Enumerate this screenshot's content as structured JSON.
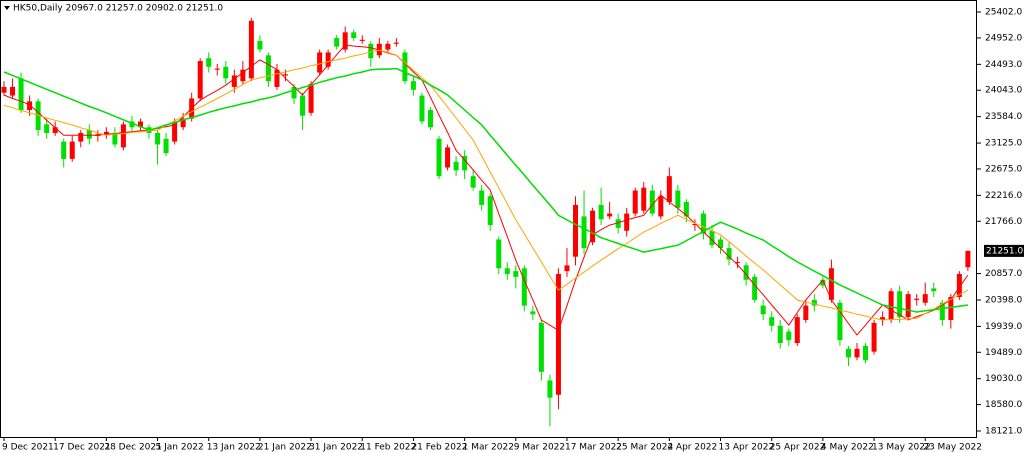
{
  "chart_data": {
    "type": "candlestick",
    "header": "HK50,Daily  20967.0 21257.0 20902.0 21251.0",
    "up_color": "#ff0000",
    "down_color": "#00e000",
    "ylim": [
      18017,
      25611
    ],
    "yticks": [
      {
        "value": 25402,
        "label": "25402.0"
      },
      {
        "value": 24952,
        "label": "24952.0"
      },
      {
        "value": 24493,
        "label": "24493.0"
      },
      {
        "value": 24043,
        "label": "24043.0"
      },
      {
        "value": 23584,
        "label": "23584.0"
      },
      {
        "value": 23125,
        "label": "23125.0"
      },
      {
        "value": 22675,
        "label": "22675.0"
      },
      {
        "value": 22216,
        "label": "22216.0"
      },
      {
        "value": 21766,
        "label": "21766.0"
      },
      {
        "value": 20857,
        "label": "20857.0"
      },
      {
        "value": 20398,
        "label": "20398.0"
      },
      {
        "value": 19939,
        "label": "19939.0"
      },
      {
        "value": 19489,
        "label": "19489.0"
      },
      {
        "value": 19030,
        "label": "19030.0"
      },
      {
        "value": 18580,
        "label": "18580.0"
      },
      {
        "value": 18121,
        "label": "18121.0"
      }
    ],
    "price_label": {
      "value": 21251,
      "label": "21251.0"
    },
    "categories": [
      "9 Dec 2021",
      null,
      null,
      null,
      null,
      null,
      "17 Dec 2021",
      null,
      null,
      null,
      null,
      null,
      "28 Dec 2021",
      null,
      null,
      null,
      null,
      null,
      "5 Jan 2022",
      null,
      null,
      null,
      null,
      null,
      "13 Jan 2022",
      null,
      null,
      null,
      null,
      null,
      "21 Jan 2022",
      null,
      null,
      null,
      null,
      null,
      "31 Jan 2022",
      null,
      null,
      null,
      null,
      null,
      "11 Feb 2022",
      null,
      null,
      null,
      null,
      null,
      "21 Feb 2022",
      null,
      null,
      null,
      null,
      null,
      "1 Mar 2022",
      null,
      null,
      null,
      null,
      null,
      "9 Mar 2022",
      null,
      null,
      null,
      null,
      null,
      "17 Mar 2022",
      null,
      null,
      null,
      null,
      null,
      "25 Mar 2022",
      null,
      null,
      null,
      null,
      null,
      "4 Apr 2022",
      null,
      null,
      null,
      null,
      null,
      "13 Apr 2022",
      null,
      null,
      null,
      null,
      null,
      "25 Apr 2022",
      null,
      null,
      null,
      null,
      null,
      "4 May 2022",
      null,
      null,
      null,
      null,
      null,
      "13 May 2022",
      null,
      null,
      null,
      null,
      null,
      "23 May 2022",
      null,
      null,
      null,
      null,
      null
    ],
    "open": [
      24000,
      23950,
      24250,
      23700,
      23850,
      23450,
      23300,
      23150,
      22850,
      23150,
      23350,
      23250,
      23280,
      23300,
      23050,
      23500,
      23400,
      23400,
      23300,
      23200,
      23150,
      23400,
      23550,
      23900,
      24600,
      24400,
      24450,
      24100,
      24200,
      24250,
      24900,
      24650,
      24100,
      24300,
      24100,
      23950,
      23650,
      24350,
      24450,
      24950,
      24750,
      25050,
      24900,
      24850,
      24650,
      24750,
      24850,
      24700,
      24200,
      23950,
      23700,
      23200,
      22700,
      22800,
      22900,
      22550,
      22300,
      22200,
      21450,
      20950,
      20900,
      20950,
      20200,
      20000,
      19000,
      18750,
      20900,
      21150,
      21850,
      21400,
      22050,
      21850,
      21800,
      21600,
      21900,
      21950,
      22300,
      21850,
      22100,
      22300,
      22100,
      21700,
      21900,
      21600,
      21450,
      21300,
      21050,
      21000,
      20800,
      20300,
      20100,
      19950,
      19850,
      19650,
      20050,
      20400,
      20750,
      20400,
      20350,
      19550,
      19400,
      19600,
      19500,
      20050,
      20050,
      20550,
      20100,
      20400,
      20350,
      20600,
      20350,
      20050,
      20450,
      20967
    ],
    "high": [
      24200,
      24250,
      24350,
      23950,
      23900,
      23550,
      23500,
      23200,
      23250,
      23350,
      23450,
      23350,
      23400,
      23400,
      23500,
      23600,
      23550,
      23450,
      23350,
      23300,
      23550,
      23650,
      24000,
      24600,
      24700,
      24500,
      24550,
      24400,
      24550,
      25300,
      25000,
      24700,
      24500,
      24400,
      24150,
      24000,
      24200,
      24750,
      24750,
      25000,
      25150,
      25100,
      25000,
      24900,
      24950,
      24900,
      24950,
      24750,
      24300,
      24000,
      23750,
      23250,
      23100,
      22900,
      23000,
      22650,
      22400,
      22250,
      21500,
      21050,
      21000,
      21000,
      20300,
      20050,
      19100,
      20950,
      21300,
      22200,
      22300,
      22000,
      22350,
      22100,
      21900,
      22000,
      22350,
      22450,
      22400,
      22300,
      22700,
      22400,
      22150,
      21800,
      21950,
      21700,
      21500,
      21400,
      21150,
      21050,
      20850,
      20400,
      20200,
      20050,
      19900,
      20150,
      20400,
      20500,
      20800,
      21100,
      20400,
      19600,
      19650,
      19650,
      20050,
      20200,
      20600,
      20650,
      20550,
      20500,
      20700,
      20700,
      20400,
      20500,
      20900,
      21257
    ],
    "low": [
      23950,
      23900,
      23650,
      23600,
      23250,
      23200,
      23250,
      22700,
      22800,
      23050,
      23100,
      23150,
      23200,
      23050,
      23000,
      23300,
      23350,
      23200,
      22750,
      22900,
      23100,
      23350,
      23500,
      23850,
      24350,
      24300,
      24150,
      24000,
      24150,
      24200,
      24700,
      24100,
      24050,
      24200,
      23800,
      23350,
      23600,
      24300,
      24400,
      24750,
      24700,
      24900,
      24850,
      24450,
      24600,
      24700,
      24800,
      24150,
      23950,
      23450,
      23350,
      22500,
      22650,
      22550,
      22500,
      22300,
      21950,
      21600,
      20850,
      20750,
      20600,
      20200,
      20050,
      19000,
      18200,
      18500,
      20800,
      21000,
      21200,
      21350,
      21700,
      21800,
      21550,
      21500,
      21850,
      21900,
      21850,
      21800,
      22050,
      21900,
      21750,
      21600,
      21450,
      21300,
      21200,
      21000,
      20950,
      20650,
      20350,
      20050,
      19850,
      19550,
      19600,
      19600,
      20000,
      20200,
      20600,
      20350,
      19600,
      19250,
      19350,
      19300,
      19450,
      19950,
      20000,
      20000,
      20050,
      20300,
      20300,
      20450,
      19950,
      19900,
      20400,
      20902
    ],
    "close": [
      24100,
      24100,
      23700,
      23850,
      23350,
      23300,
      23400,
      22850,
      23150,
      23300,
      23200,
      23280,
      23320,
      23100,
      23450,
      23400,
      23500,
      23300,
      23100,
      22950,
      23500,
      23550,
      23900,
      24550,
      24450,
      24420,
      24250,
      24300,
      24400,
      25250,
      24750,
      24200,
      24400,
      24320,
      23900,
      23600,
      24150,
      24700,
      24700,
      24800,
      25050,
      24950,
      24920,
      24600,
      24850,
      24850,
      24870,
      24200,
      24050,
      23500,
      23400,
      22550,
      23050,
      22650,
      22650,
      22350,
      22050,
      21700,
      20950,
      20850,
      20800,
      20300,
      20150,
      19150,
      18700,
      20850,
      21000,
      22050,
      21300,
      21950,
      21800,
      21900,
      21650,
      21900,
      22300,
      22350,
      21900,
      22200,
      22550,
      22000,
      21850,
      21720,
      21550,
      21350,
      21300,
      21100,
      21060,
      20750,
      20400,
      20150,
      19950,
      19650,
      19700,
      20100,
      20300,
      20300,
      20650,
      20950,
      19700,
      19400,
      19550,
      19350,
      20000,
      20100,
      20550,
      20100,
      20500,
      20420,
      20500,
      20550,
      20050,
      20450,
      20850,
      21251
    ],
    "series": [
      {
        "color": "#ff0000",
        "values": [
          23960,
          23900,
          23850,
          23790,
          23660,
          23520,
          23390,
          23260,
          23260,
          23260,
          23260,
          23260,
          23280,
          23290,
          23310,
          23320,
          23340,
          23350,
          23380,
          23410,
          23440,
          23580,
          23730,
          23870,
          23960,
          24040,
          24130,
          24240,
          24350,
          24460,
          24570,
          24490,
          24400,
          24250,
          24110,
          23960,
          24140,
          24310,
          24480,
          24660,
          24830,
          24810,
          24800,
          24780,
          24740,
          24690,
          24650,
          24510,
          24360,
          24220,
          23920,
          23610,
          23310,
          23000,
          22830,
          22660,
          22480,
          22310,
          21900,
          21500,
          21090,
          20740,
          20400,
          20050,
          19960,
          19870,
          20300,
          20740,
          21140,
          21530,
          21620,
          21700,
          21740,
          21790,
          21830,
          21870,
          22050,
          22220,
          22100,
          21990,
          21870,
          21730,
          21580,
          21440,
          21300,
          21150,
          21010,
          20840,
          20660,
          20490,
          20310,
          20140,
          19960,
          20180,
          20400,
          20570,
          20740,
          20400,
          20200,
          19990,
          19790,
          19960,
          20140,
          20310,
          20220,
          20140,
          20050,
          20110,
          20160,
          20220,
          20310,
          20400,
          20620,
          20830
        ]
      },
      {
        "color": "#ffa500",
        "values": [
          23780,
          23740,
          23690,
          23650,
          23610,
          23560,
          23520,
          23480,
          23440,
          23390,
          23350,
          23300,
          23260,
          23280,
          23290,
          23310,
          23320,
          23340,
          23350,
          23430,
          23510,
          23590,
          23670,
          23750,
          23820,
          23900,
          23980,
          24060,
          24140,
          24220,
          24260,
          24290,
          24330,
          24360,
          24400,
          24430,
          24470,
          24500,
          24540,
          24570,
          24600,
          24640,
          24670,
          24710,
          24740,
          24700,
          24650,
          24520,
          24390,
          24260,
          24130,
          23940,
          23750,
          23560,
          23370,
          23180,
          22900,
          22620,
          22350,
          22070,
          21790,
          21550,
          21300,
          21060,
          20810,
          20570,
          20670,
          20780,
          20880,
          20990,
          21090,
          21190,
          21290,
          21380,
          21480,
          21580,
          21650,
          21730,
          21800,
          21870,
          21800,
          21730,
          21670,
          21600,
          21530,
          21410,
          21290,
          21160,
          21040,
          20920,
          20790,
          20660,
          20530,
          20400,
          20360,
          20330,
          20290,
          20260,
          20220,
          20190,
          20150,
          20120,
          20080,
          20050,
          20060,
          20060,
          20070,
          20080,
          20160,
          20240,
          20330,
          20410,
          20490,
          20570
        ]
      },
      {
        "color": "#00dd00",
        "values": [
          24360,
          24300,
          24240,
          24180,
          24120,
          24060,
          24000,
          23940,
          23880,
          23820,
          23760,
          23710,
          23650,
          23590,
          23530,
          23470,
          23410,
          23350,
          23390,
          23440,
          23480,
          23530,
          23570,
          23610,
          23660,
          23700,
          23740,
          23770,
          23810,
          23840,
          23880,
          23910,
          23950,
          24000,
          24040,
          24090,
          24130,
          24180,
          24220,
          24260,
          24290,
          24330,
          24360,
          24400,
          24410,
          24410,
          24420,
          24350,
          24290,
          24220,
          24130,
          24050,
          23960,
          23830,
          23700,
          23570,
          23440,
          23260,
          23090,
          22910,
          22740,
          22570,
          22390,
          22220,
          22050,
          21870,
          21790,
          21710,
          21640,
          21560,
          21480,
          21430,
          21380,
          21330,
          21280,
          21230,
          21260,
          21290,
          21320,
          21350,
          21430,
          21510,
          21590,
          21670,
          21750,
          21690,
          21630,
          21560,
          21500,
          21440,
          21340,
          21250,
          21150,
          21060,
          20980,
          20900,
          20820,
          20740,
          20660,
          20590,
          20520,
          20450,
          20380,
          20310,
          20280,
          20250,
          20220,
          20190,
          20210,
          20230,
          20250,
          20270,
          20290,
          20310
        ]
      }
    ]
  }
}
